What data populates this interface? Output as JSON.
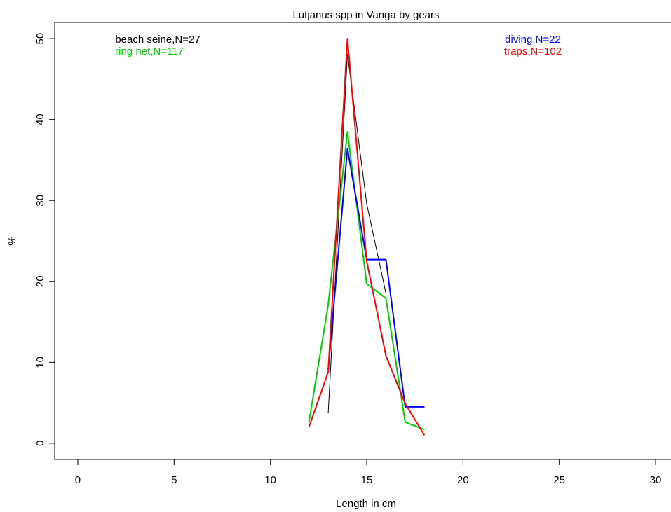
{
  "chart_data": {
    "type": "line",
    "title": "Lutjanus spp in Vanga by gears",
    "x_label": "Length in cm",
    "y_label": "%",
    "x": [
      12,
      13,
      14,
      15,
      16,
      17,
      18
    ],
    "series": [
      {
        "name": "beach seine,N=27",
        "color": "#000000",
        "values": [
          null,
          3.7,
          48.1,
          29.6,
          18.5,
          null,
          null
        ]
      },
      {
        "name": "ring net,N=117",
        "color": "#00cd00",
        "values": [
          2.6,
          17.1,
          38.5,
          19.7,
          17.9,
          2.6,
          1.7
        ]
      },
      {
        "name": "diving,N=22",
        "color": "#0000ff",
        "values": [
          null,
          9.1,
          36.4,
          22.7,
          22.7,
          4.5,
          4.5
        ]
      },
      {
        "name": "traps,N=102",
        "color": "#ff0000",
        "values": [
          2.0,
          8.8,
          50.0,
          22.5,
          10.8,
          4.9,
          1.0
        ]
      }
    ],
    "xlim": [
      -1.2,
      31.2
    ],
    "ylim": [
      -2,
      52
    ],
    "xticks": [
      0,
      5,
      10,
      15,
      20,
      25,
      30
    ],
    "yticks": [
      0,
      10,
      20,
      30,
      40,
      50
    ]
  }
}
